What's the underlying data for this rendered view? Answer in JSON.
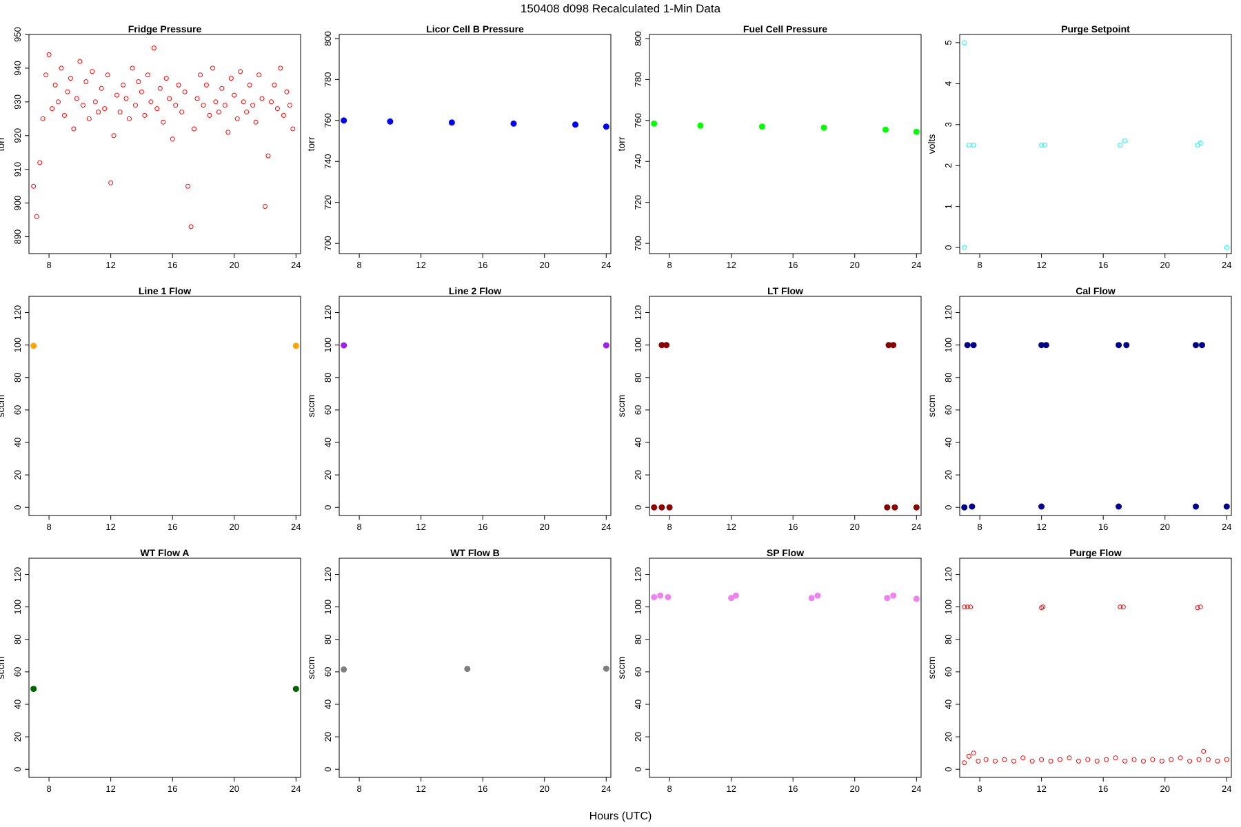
{
  "figure": {
    "title": "150408   d098   Recalculated 1-Min Data",
    "xlabel": "Hours (UTC)"
  },
  "chart_data": [
    {
      "type": "scatter",
      "title": "Fridge Pressure",
      "ylabel": "torr",
      "color": "#ff0000",
      "marker": "open-circle",
      "xlim": [
        6.7,
        24.3
      ],
      "ylim": [
        885,
        950
      ],
      "xticks": [
        8,
        12,
        16,
        20,
        24
      ],
      "yticks": [
        890,
        900,
        910,
        920,
        930,
        940,
        950
      ],
      "x": [
        7.0,
        7.2,
        7.4,
        7.6,
        7.8,
        8.0,
        8.2,
        8.4,
        8.6,
        8.8,
        9.0,
        9.2,
        9.4,
        9.6,
        9.8,
        10.0,
        10.2,
        10.4,
        10.6,
        10.8,
        11.0,
        11.2,
        11.4,
        11.6,
        11.8,
        12.0,
        12.2,
        12.4,
        12.6,
        12.8,
        13.0,
        13.2,
        13.4,
        13.6,
        13.8,
        14.0,
        14.2,
        14.4,
        14.6,
        14.8,
        15.0,
        15.2,
        15.4,
        15.6,
        15.8,
        16.0,
        16.2,
        16.4,
        16.6,
        16.8,
        17.0,
        17.2,
        17.4,
        17.6,
        17.8,
        18.0,
        18.2,
        18.4,
        18.6,
        18.8,
        19.0,
        19.2,
        19.4,
        19.6,
        19.8,
        20.0,
        20.2,
        20.4,
        20.6,
        20.8,
        21.0,
        21.2,
        21.4,
        21.6,
        21.8,
        22.0,
        22.2,
        22.4,
        22.6,
        22.8,
        23.0,
        23.2,
        23.4,
        23.6,
        23.8
      ],
      "y": [
        905,
        896,
        912,
        925,
        938,
        944,
        928,
        935,
        930,
        940,
        926,
        933,
        937,
        922,
        931,
        942,
        929,
        936,
        925,
        939,
        930,
        927,
        934,
        928,
        938,
        906,
        920,
        932,
        927,
        935,
        931,
        925,
        940,
        929,
        936,
        933,
        926,
        938,
        930,
        946,
        928,
        934,
        924,
        937,
        931,
        919,
        929,
        935,
        927,
        933,
        905,
        893,
        922,
        931,
        938,
        929,
        935,
        926,
        940,
        930,
        927,
        934,
        929,
        921,
        937,
        932,
        925,
        939,
        930,
        927,
        935,
        929,
        924,
        938,
        931,
        899,
        914,
        930,
        935,
        928,
        940,
        926,
        933,
        929,
        922
      ]
    },
    {
      "type": "scatter",
      "title": "Licor Cell B Pressure",
      "ylabel": "torr",
      "color": "#0000ff",
      "marker": "filled-circle",
      "xlim": [
        6.7,
        24.3
      ],
      "ylim": [
        695,
        802
      ],
      "xticks": [
        8,
        12,
        16,
        20,
        24
      ],
      "yticks": [
        700,
        720,
        740,
        760,
        780,
        800
      ],
      "x": [
        7.0,
        10.0,
        14.0,
        18.0,
        22.0,
        24.0
      ],
      "y": [
        760.0,
        759.5,
        759.0,
        758.5,
        758.0,
        757.0
      ]
    },
    {
      "type": "scatter",
      "title": "Fuel Cell Pressure",
      "ylabel": "torr",
      "color": "#00ff00",
      "marker": "filled-circle",
      "xlim": [
        6.7,
        24.3
      ],
      "ylim": [
        695,
        802
      ],
      "xticks": [
        8,
        12,
        16,
        20,
        24
      ],
      "yticks": [
        700,
        720,
        740,
        760,
        780,
        800
      ],
      "x": [
        7.0,
        10.0,
        14.0,
        18.0,
        22.0,
        24.0
      ],
      "y": [
        758.5,
        757.5,
        757.0,
        756.5,
        755.5,
        754.5
      ]
    },
    {
      "type": "scatter",
      "title": "Purge Setpoint",
      "ylabel": "volts",
      "color": "#00ffff",
      "marker": "open-circle",
      "xlim": [
        6.7,
        24.3
      ],
      "ylim": [
        -0.15,
        5.2
      ],
      "xticks": [
        8,
        12,
        16,
        20,
        24
      ],
      "yticks": [
        0,
        1,
        2,
        3,
        4,
        5
      ],
      "x": [
        7.0,
        7.3,
        7.6,
        12.0,
        12.2,
        17.1,
        17.4,
        22.1,
        22.3,
        7.0,
        24.0
      ],
      "y": [
        5.0,
        2.5,
        2.5,
        2.5,
        2.5,
        2.5,
        2.6,
        2.5,
        2.55,
        0,
        0
      ]
    },
    {
      "type": "scatter",
      "title": "Line 1 Flow",
      "ylabel": "sccm",
      "color": "#ffa500",
      "marker": "filled-circle",
      "xlim": [
        6.7,
        24.3
      ],
      "ylim": [
        -5,
        130
      ],
      "xticks": [
        8,
        12,
        16,
        20,
        24
      ],
      "yticks": [
        0,
        20,
        40,
        60,
        80,
        100,
        120
      ],
      "x": [
        7.0,
        24.0
      ],
      "y": [
        99.5,
        99.5
      ]
    },
    {
      "type": "scatter",
      "title": "Line 2 Flow",
      "ylabel": "sccm",
      "color": "#a020f0",
      "marker": "filled-circle",
      "xlim": [
        6.7,
        24.3
      ],
      "ylim": [
        -5,
        130
      ],
      "xticks": [
        8,
        12,
        16,
        20,
        24
      ],
      "yticks": [
        0,
        20,
        40,
        60,
        80,
        100,
        120
      ],
      "x": [
        7.0,
        24.0
      ],
      "y": [
        99.8,
        99.8
      ]
    },
    {
      "type": "scatter",
      "title": "LT Flow",
      "ylabel": "sccm",
      "color": "#8b0000",
      "marker": "filled-circle",
      "xlim": [
        6.7,
        24.3
      ],
      "ylim": [
        -5,
        130
      ],
      "xticks": [
        8,
        12,
        16,
        20,
        24
      ],
      "yticks": [
        0,
        20,
        40,
        60,
        80,
        100,
        120
      ],
      "x": [
        7.0,
        7.5,
        8.0,
        22.1,
        22.6,
        24.0,
        7.5,
        7.8,
        22.2,
        22.5
      ],
      "y": [
        0,
        0,
        0,
        0,
        0,
        0,
        100,
        100,
        100,
        100
      ]
    },
    {
      "type": "scatter",
      "title": "Cal Flow",
      "ylabel": "sccm",
      "color": "#00008b",
      "marker": "filled-circle",
      "xlim": [
        6.7,
        24.3
      ],
      "ylim": [
        -5,
        130
      ],
      "xticks": [
        8,
        12,
        16,
        20,
        24
      ],
      "yticks": [
        0,
        20,
        40,
        60,
        80,
        100,
        120
      ],
      "x": [
        7.0,
        7.5,
        12.0,
        17.0,
        22.0,
        24.0,
        7.2,
        7.6,
        12.0,
        12.3,
        17.0,
        17.5,
        22.0,
        22.4
      ],
      "y": [
        0,
        0.5,
        0.5,
        0.5,
        0.5,
        0.5,
        100,
        100,
        100,
        100,
        100,
        100,
        100,
        100
      ]
    },
    {
      "type": "scatter",
      "title": "WT Flow A",
      "ylabel": "sccm",
      "color": "#006400",
      "marker": "filled-circle",
      "xlim": [
        6.7,
        24.3
      ],
      "ylim": [
        -5,
        130
      ],
      "xticks": [
        8,
        12,
        16,
        20,
        24
      ],
      "yticks": [
        0,
        20,
        40,
        60,
        80,
        100,
        120
      ],
      "x": [
        7.0,
        24.0
      ],
      "y": [
        49.5,
        49.5
      ]
    },
    {
      "type": "scatter",
      "title": "WT Flow B",
      "ylabel": "sccm",
      "color": "#7f7f7f",
      "marker": "filled-circle",
      "xlim": [
        6.7,
        24.3
      ],
      "ylim": [
        -5,
        130
      ],
      "xticks": [
        8,
        12,
        16,
        20,
        24
      ],
      "yticks": [
        0,
        20,
        40,
        60,
        80,
        100,
        120
      ],
      "x": [
        7.0,
        15.0,
        24.0
      ],
      "y": [
        61.5,
        61.8,
        62.0
      ]
    },
    {
      "type": "scatter",
      "title": "SP Flow",
      "ylabel": "sccm",
      "color": "#ee82ee",
      "marker": "filled-circle",
      "xlim": [
        6.7,
        24.3
      ],
      "ylim": [
        -5,
        130
      ],
      "xticks": [
        8,
        12,
        16,
        20,
        24
      ],
      "yticks": [
        0,
        20,
        40,
        60,
        80,
        100,
        120
      ],
      "x": [
        7.0,
        7.4,
        7.9,
        12.0,
        12.3,
        17.2,
        17.6,
        22.1,
        22.5,
        24.0
      ],
      "y": [
        106,
        107,
        106,
        105.5,
        107,
        105.5,
        107,
        105.5,
        107,
        105
      ]
    },
    {
      "type": "scatter",
      "title": "Purge Flow",
      "ylabel": "sccm",
      "color": "#ff0000",
      "marker": "open-circle",
      "xlim": [
        6.7,
        24.3
      ],
      "ylim": [
        -5,
        130
      ],
      "xticks": [
        8,
        12,
        16,
        20,
        24
      ],
      "yticks": [
        0,
        20,
        40,
        60,
        80,
        100,
        120
      ],
      "x": [
        7.0,
        7.2,
        7.4,
        12.0,
        12.1,
        17.1,
        17.3,
        22.1,
        22.3,
        7.0,
        7.3,
        7.6,
        7.9,
        8.4,
        9.0,
        9.6,
        10.2,
        10.8,
        11.4,
        12.0,
        12.6,
        13.2,
        13.8,
        14.4,
        15.0,
        15.6,
        16.2,
        16.8,
        17.4,
        18.0,
        18.6,
        19.2,
        19.8,
        20.4,
        21.0,
        21.6,
        22.2,
        22.5,
        22.8,
        23.4,
        24.0
      ],
      "y": [
        100,
        100,
        100,
        99.5,
        100,
        100,
        100,
        99.5,
        100,
        4,
        8,
        10,
        5,
        6,
        5,
        6,
        5,
        7,
        5,
        6,
        5,
        6,
        7,
        5,
        6,
        5,
        6,
        7,
        5,
        6,
        5,
        6,
        5,
        6,
        7,
        5,
        6,
        11,
        6,
        5,
        6
      ]
    }
  ]
}
